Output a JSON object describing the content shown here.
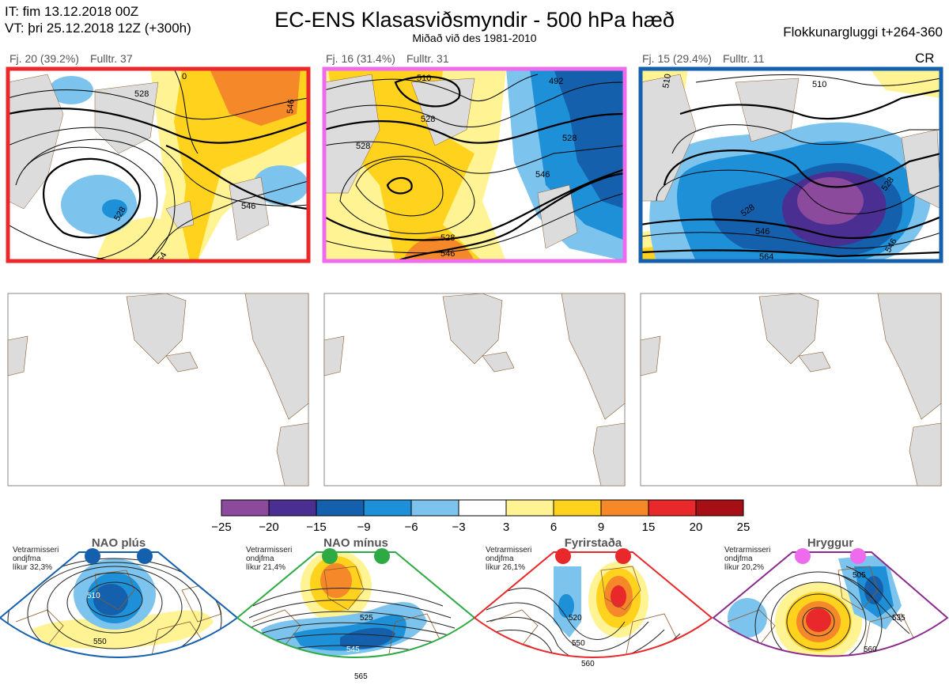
{
  "header": {
    "it_line": "IT: fim 13.12.2018 00Z",
    "vt_line": "VT: þri 25.12.2018 12Z  (+300h)",
    "title": "EC-ENS Klasasviðsmyndir - 500 hPa hæð",
    "subtitle": "Miðað við des 1981-2010",
    "window": "Flokkunargluggi t+264-360"
  },
  "clusters": [
    {
      "fj": "Fj. 20 (39.2%)",
      "fulltr": "Fulltr. 37",
      "border": "#e8282a",
      "contours": [
        "528",
        "528",
        "546",
        "546",
        "54",
        "0"
      ]
    },
    {
      "fj": "Fj. 16 (31.4%)",
      "fulltr": "Fulltr. 31",
      "border": "#ee6bee",
      "contours": [
        "510",
        "492",
        "528",
        "528",
        "528",
        "546",
        "528",
        "546"
      ]
    },
    {
      "fj": "Fj. 15 (29.4%)",
      "fulltr": "Fulltr. 11",
      "border": "#1560ad",
      "contours": [
        "510",
        "510",
        "528",
        "528",
        "546",
        "564",
        "546"
      ]
    }
  ],
  "cluster_tag": "CR",
  "colorbar": {
    "ticks": [
      "−25",
      "−20",
      "−15",
      "−9",
      "−6",
      "−3",
      "3",
      "6",
      "9",
      "15",
      "20",
      "25"
    ],
    "colors": [
      "#8b4a9c",
      "#4a2e91",
      "#1560ad",
      "#1e90d8",
      "#7cc4ee",
      "#ffffff",
      "#fff394",
      "#ffd21e",
      "#f5892a",
      "#e8282a",
      "#a50f15"
    ]
  },
  "regimes": [
    {
      "name": "NAO plús",
      "stat1": "Vetrarmisseri",
      "stat2": "ondjfma",
      "stat3": "líkur 32,3%",
      "color": "#1560ad",
      "dot": "#1560ad",
      "contours": [
        "510",
        "550"
      ]
    },
    {
      "name": "NAO mínus",
      "stat1": "Vetrarmisseri",
      "stat2": "ondjfma",
      "stat3": "líkur 21,4%",
      "color": "#2eaa44",
      "dot": "#2eaa44",
      "contours": [
        "525",
        "545",
        "565"
      ]
    },
    {
      "name": "Fyrirstaða",
      "stat1": "Vetrarmisseri",
      "stat2": "ondjfma",
      "stat3": "líkur 26,1%",
      "color": "#e8282a",
      "dot": "#e8282a",
      "contours": [
        "520",
        "550",
        "560"
      ]
    },
    {
      "name": "Hryggur",
      "stat1": "Vetrarmisseri",
      "stat2": "ondjfma",
      "stat3": "líkur 20,2%",
      "color": "#8b2a8c",
      "dot": "#ee6bee",
      "contours": [
        "505",
        "535",
        "560"
      ]
    }
  ]
}
